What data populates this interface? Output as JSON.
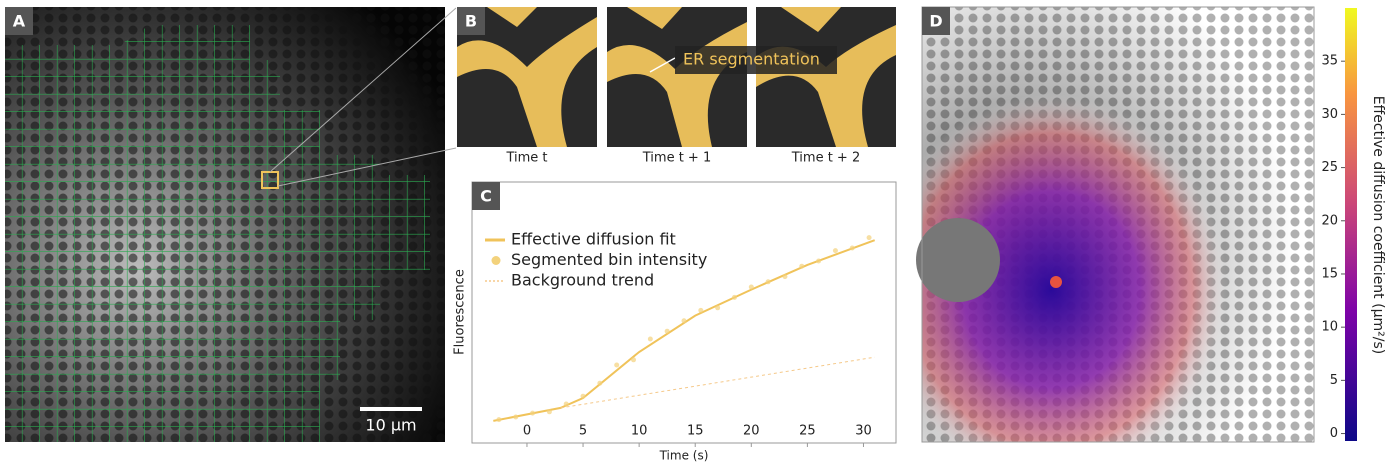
{
  "panels": {
    "a": "A",
    "b": "B",
    "c": "C",
    "d": "D"
  },
  "panel_a": {
    "scale_bar": "10 µm"
  },
  "panel_b": {
    "annotation": "ER segmentation",
    "captions": [
      "Time t",
      "Time t + 1",
      "Time t + 2"
    ]
  },
  "chart_data": {
    "type": "line",
    "x_label": "Time (s)",
    "y_label": "Fluorescence",
    "xlim": [
      -4.9,
      32.9
    ],
    "ylim": [
      0,
      100
    ],
    "xticks": [
      0,
      5,
      10,
      15,
      20,
      25,
      30
    ],
    "series": [
      {
        "name": "Effective diffusion fit",
        "style": "solid",
        "color": "#f0c35a",
        "x": [
          -3,
          3,
          5,
          10,
          15,
          20,
          25,
          31
        ],
        "values": [
          8.5,
          13.5,
          17.3,
          35,
          49,
          59,
          68.5,
          78
        ]
      },
      {
        "name": "Segmented bin intensity",
        "style": "points",
        "color": "#f3d27c",
        "x": [
          -2.5,
          -1,
          0.5,
          2,
          3.5,
          5,
          6.5,
          8,
          9.5,
          11,
          12.5,
          14,
          15.5,
          17,
          18.5,
          20,
          21.5,
          23,
          24.5,
          26,
          27.5,
          29,
          30.5
        ],
        "values": [
          9,
          10,
          11.5,
          12,
          15,
          18,
          23,
          30,
          32,
          40,
          43,
          47,
          51,
          52,
          56,
          60,
          62,
          64,
          68,
          70,
          74,
          75,
          79
        ]
      },
      {
        "name": "Background trend",
        "style": "dashed",
        "color": "#f5c98a",
        "x": [
          3,
          31
        ],
        "values": [
          13.5,
          33
        ]
      }
    ]
  },
  "colorbar": {
    "label": "Effective diffusion coefficient (µm²/s)",
    "clim": [
      -0.7,
      40
    ],
    "ticks": [
      0,
      5,
      10,
      15,
      20,
      25,
      30,
      35
    ]
  }
}
